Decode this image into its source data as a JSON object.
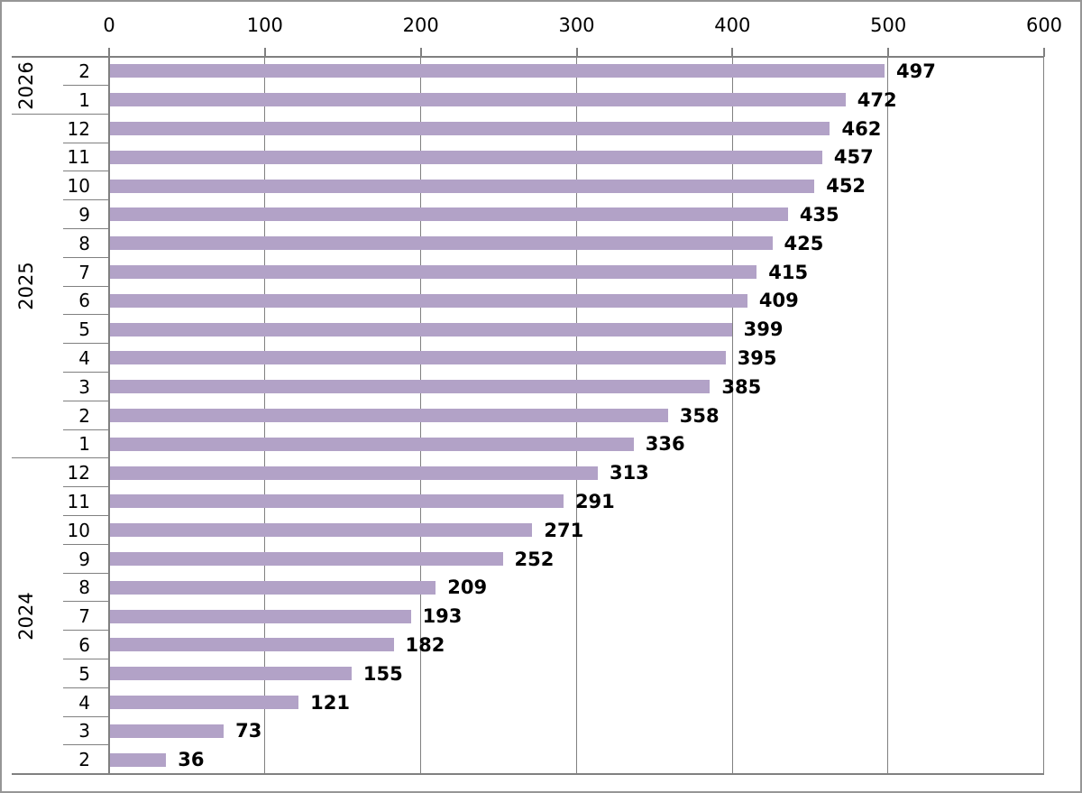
{
  "chart_data": {
    "type": "bar",
    "orientation": "horizontal",
    "title": "",
    "xlabel": "",
    "ylabel": "",
    "xlim": [
      0,
      600
    ],
    "x_axis_position": "top",
    "x_ticks": [
      0,
      100,
      200,
      300,
      400,
      500,
      600
    ],
    "grid": true,
    "legend": false,
    "value_labels_shown": true,
    "groups": [
      {
        "year": "2026",
        "rows": [
          {
            "month": "2",
            "value": 497
          },
          {
            "month": "1",
            "value": 472
          }
        ]
      },
      {
        "year": "2025",
        "rows": [
          {
            "month": "12",
            "value": 462
          },
          {
            "month": "11",
            "value": 457
          },
          {
            "month": "10",
            "value": 452
          },
          {
            "month": "9",
            "value": 435
          },
          {
            "month": "8",
            "value": 425
          },
          {
            "month": "7",
            "value": 415
          },
          {
            "month": "6",
            "value": 409
          },
          {
            "month": "5",
            "value": 399
          },
          {
            "month": "4",
            "value": 395
          },
          {
            "month": "3",
            "value": 385
          },
          {
            "month": "2",
            "value": 358
          },
          {
            "month": "1",
            "value": 336
          }
        ]
      },
      {
        "year": "2024",
        "rows": [
          {
            "month": "12",
            "value": 313
          },
          {
            "month": "11",
            "value": 291
          },
          {
            "month": "10",
            "value": 271
          },
          {
            "month": "9",
            "value": 252
          },
          {
            "month": "8",
            "value": 209
          },
          {
            "month": "7",
            "value": 193
          },
          {
            "month": "6",
            "value": 182
          },
          {
            "month": "5",
            "value": 155
          },
          {
            "month": "4",
            "value": 121
          },
          {
            "month": "3",
            "value": 73
          },
          {
            "month": "2",
            "value": 36
          }
        ]
      }
    ],
    "colors": {
      "bar_fill": "#B2A2C7",
      "grid_line": "#808080",
      "axis_line": "#808080",
      "outer_border": "#969696",
      "text": "#000000",
      "background": "#FFFFFF"
    }
  }
}
